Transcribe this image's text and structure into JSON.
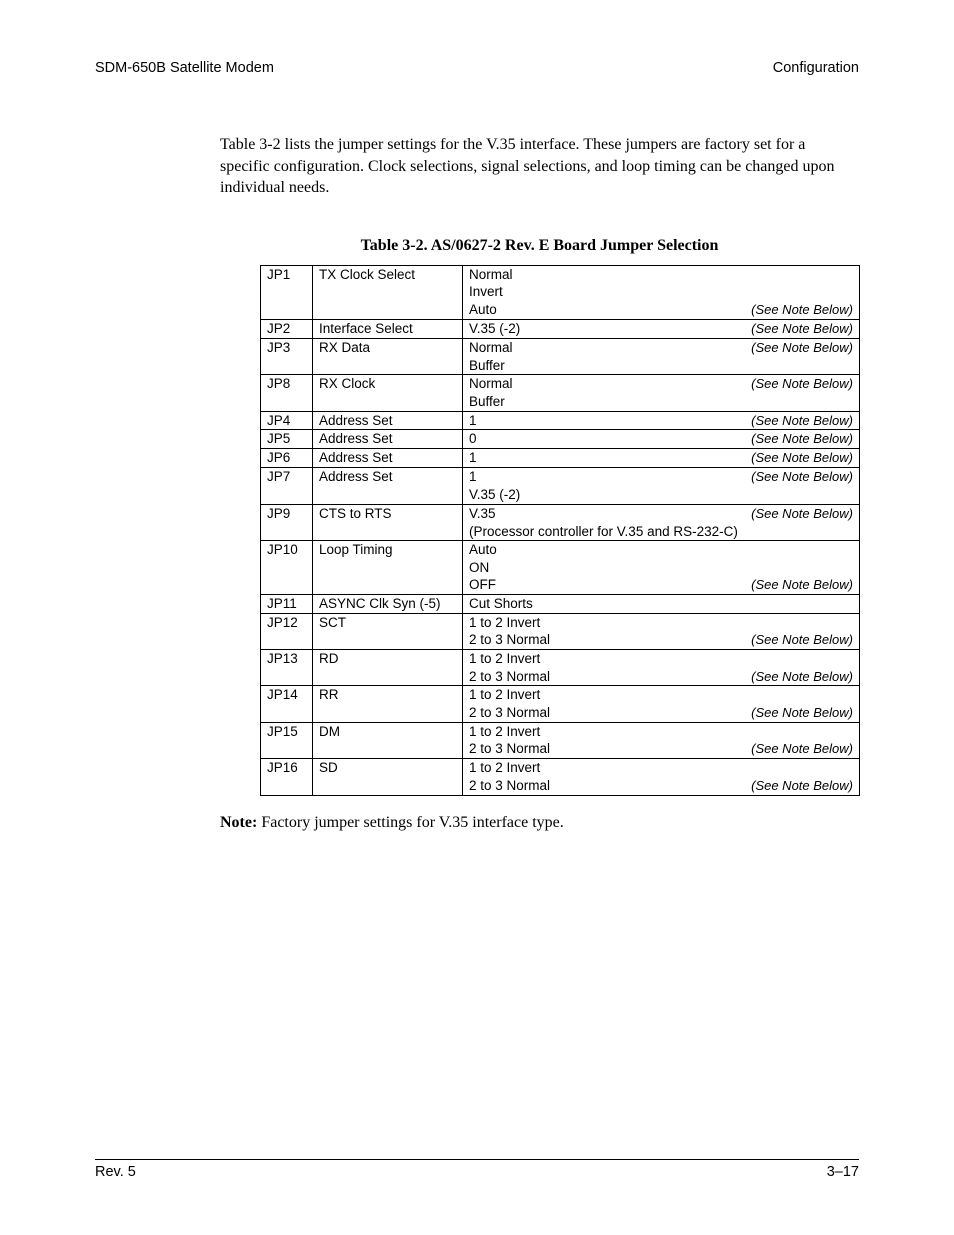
{
  "header": {
    "left": "SDM-650B Satellite Modem",
    "right": "Configuration"
  },
  "paragraph": "Table 3-2 lists the jumper settings for the V.35 interface. These jumpers are factory set for a specific configuration. Clock selections, signal selections, and loop timing can be changed upon individual needs.",
  "table": {
    "caption": "Table 3-2.  AS/0627-2 Rev. E Board Jumper Selection",
    "note_text": "(See Note Below)",
    "rows": [
      {
        "jp": "JP1",
        "fn": "TX Clock Select",
        "vals": [
          "Normal",
          "Invert",
          "Auto"
        ],
        "note_on_last": true
      },
      {
        "jp": "JP2",
        "fn": "Interface Select",
        "vals": [
          "V.35 (-2)"
        ],
        "note_on_last": true
      },
      {
        "jp": "JP3",
        "fn": "RX Data",
        "vals": [
          "Normal",
          "Buffer"
        ],
        "note_on_first": true
      },
      {
        "jp": "JP8",
        "fn": "RX Clock",
        "vals": [
          "Normal",
          "Buffer"
        ],
        "note_on_first": true
      },
      {
        "jp": "JP4",
        "fn": "Address Set",
        "vals": [
          "1"
        ],
        "note_on_last": true
      },
      {
        "jp": "JP5",
        "fn": "Address Set",
        "vals": [
          "0"
        ],
        "note_on_last": true
      },
      {
        "jp": "JP6",
        "fn": "Address Set",
        "vals": [
          "1"
        ],
        "note_on_last": true
      },
      {
        "jp": "JP7",
        "fn": "Address Set",
        "vals": [
          "1",
          "V.35 (-2)"
        ],
        "note_on_first": true
      },
      {
        "jp": "JP9",
        "fn": "CTS to RTS",
        "vals": [
          "V.35",
          "(Processor controller for V.35 and RS-232-C)"
        ],
        "note_on_first": true
      },
      {
        "jp": "JP10",
        "fn": "Loop Timing",
        "vals": [
          "Auto",
          "ON",
          "OFF"
        ],
        "note_on_last": true
      },
      {
        "jp": "JP11",
        "fn": "ASYNC Clk Syn (-5)",
        "vals": [
          "Cut Shorts"
        ]
      },
      {
        "jp": "JP12",
        "fn": "SCT",
        "vals": [
          "1 to 2 Invert",
          "2 to 3 Normal"
        ],
        "note_on_last": true
      },
      {
        "jp": "JP13",
        "fn": "RD",
        "vals": [
          "1 to 2 Invert",
          "2 to 3 Normal"
        ],
        "note_on_last": true
      },
      {
        "jp": "JP14",
        "fn": "RR",
        "vals": [
          "1 to 2 Invert",
          "2 to 3 Normal"
        ],
        "note_on_last": true
      },
      {
        "jp": "JP15",
        "fn": "DM",
        "vals": [
          "1 to 2 Invert",
          "2 to 3 Normal"
        ],
        "note_on_last": true
      },
      {
        "jp": "JP16",
        "fn": "SD",
        "vals": [
          "1 to 2 Invert",
          "2 to 3 Normal"
        ],
        "note_on_last": true
      }
    ]
  },
  "note": {
    "label": "Note:",
    "text": " Factory jumper settings for V.35 interface type."
  },
  "footer": {
    "left": "Rev. 5",
    "right": "3–17"
  }
}
